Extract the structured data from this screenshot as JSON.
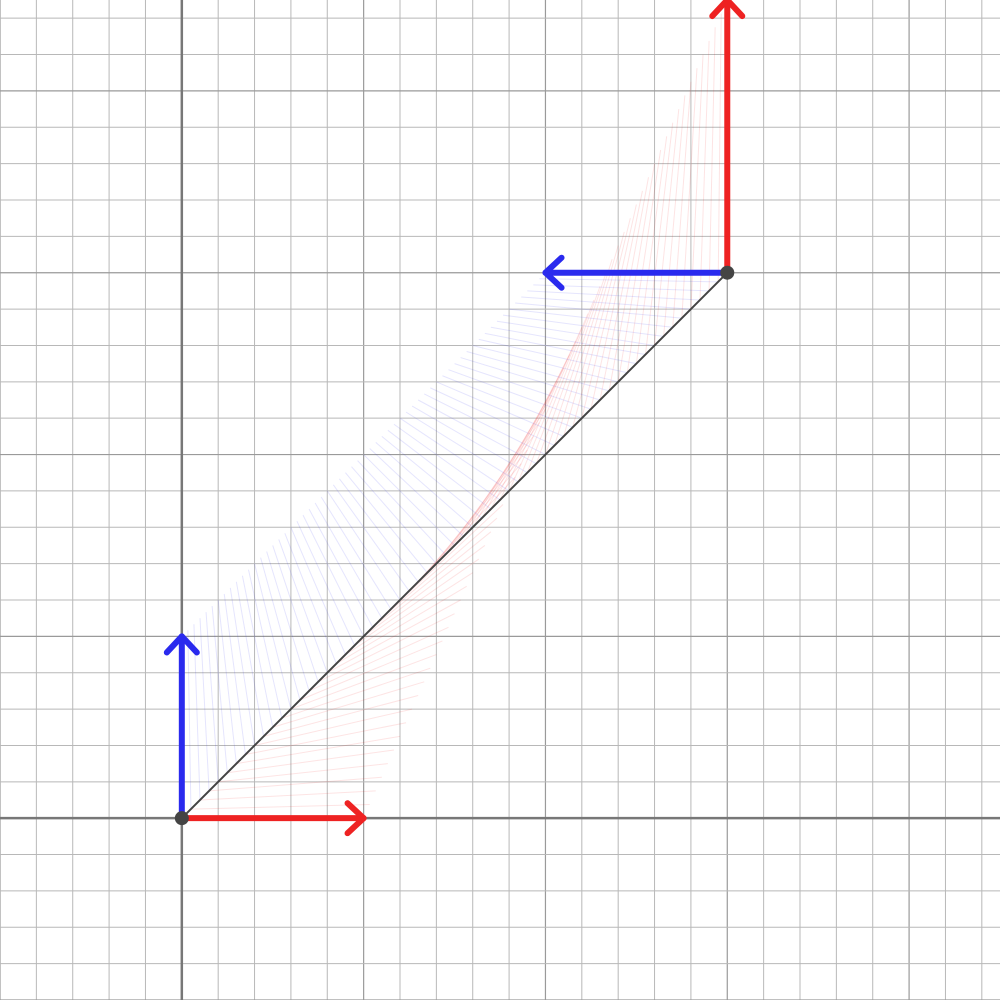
{
  "chart_data": {
    "type": "vector-field-diagram",
    "grid": true,
    "minor_step": 0.2,
    "major_step": 1,
    "xlim": [
      -1,
      4.5
    ],
    "ylim": [
      -1,
      4.5
    ],
    "points": [
      {
        "name": "start",
        "x": 0,
        "y": 0
      },
      {
        "name": "end",
        "x": 3,
        "y": 3
      }
    ],
    "start_vectors": [
      {
        "color": "#ee2222",
        "dx": 1,
        "dy": 0
      },
      {
        "color": "#2a2aee",
        "dx": 0,
        "dy": 1
      }
    ],
    "end_vectors": [
      {
        "color": "#ee2222",
        "dx": 0,
        "dy": 1.5
      },
      {
        "color": "#2a2aee",
        "dx": -1,
        "dy": 0
      }
    ],
    "trail_steps": 60,
    "colors": {
      "red": "#ee2222",
      "blue": "#2a2aee",
      "axis": "#777777",
      "major_grid": "#9a9a9a",
      "minor_grid": "#b8b8b8",
      "path": "#444444",
      "point": "#444444"
    }
  }
}
